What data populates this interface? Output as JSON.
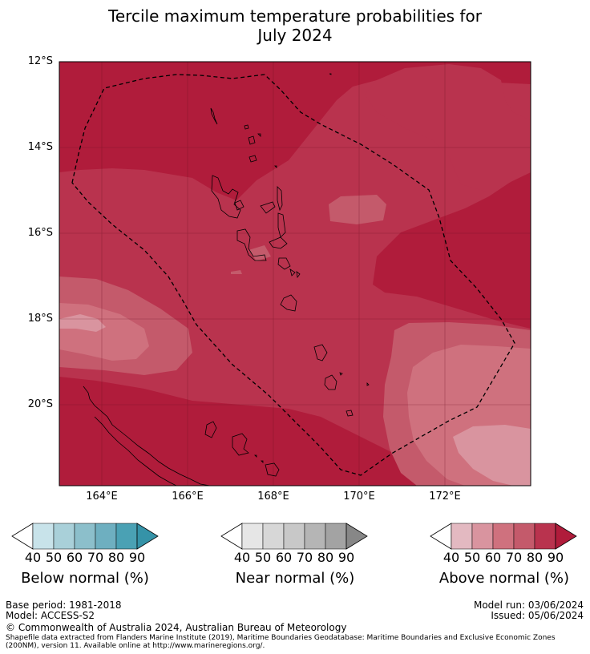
{
  "title_line1": "Tercile maximum temperature probabilities for",
  "title_line2": "July 2024",
  "lat_labels": [
    "12°S",
    "14°S",
    "16°S",
    "18°S",
    "20°S"
  ],
  "lon_labels": [
    "164°E",
    "166°E",
    "168°E",
    "170°E",
    "172°E"
  ],
  "colorbars": [
    {
      "title": "Below normal (%)",
      "ticks": [
        "40",
        "50",
        "60",
        "70",
        "80",
        "90"
      ],
      "colors": [
        "#ffffff",
        "#c8e3ea",
        "#a9d0d9",
        "#8cbfcb",
        "#6eafc0",
        "#4aa1b4",
        "#3593a8"
      ]
    },
    {
      "title": "Near normal (%)",
      "ticks": [
        "40",
        "50",
        "60",
        "70",
        "80",
        "90"
      ],
      "colors": [
        "#ffffff",
        "#e6e6e6",
        "#d7d7d7",
        "#c8c8c8",
        "#b5b5b5",
        "#a3a3a3",
        "#878787"
      ]
    },
    {
      "title": "Above normal (%)",
      "ticks": [
        "40",
        "50",
        "60",
        "70",
        "80",
        "90"
      ],
      "colors": [
        "#ffffff",
        "#e3b9c1",
        "#d9949f",
        "#cf717e",
        "#c45a6b",
        "#b9334e",
        "#b01c3b"
      ]
    }
  ],
  "footer": {
    "base_period": "Base period: 1981-2018",
    "model": "Model: ACCESS-S2",
    "model_run": "Model run: 03/06/2024",
    "issued": "Issued: 05/06/2024",
    "copyright": "© Commonwealth of Australia 2024, Australian Bureau of Meteorology",
    "shapefile_line1": "Shapefile data extracted from Flanders Marine Institute (2019), Maritime Boundaries Geodatabase: Maritime Boundaries and Exclusive Economic Zones",
    "shapefile_line2": "(200NM), version 11. Available online at http://www.marineregions.org/."
  },
  "map_colors": {
    "above_80_90": "#b01c3b",
    "above_70_80": "#b9334e",
    "above_60_70": "#c45a6b",
    "above_50_60": "#cf717e",
    "above_40_50": "#d9949f"
  }
}
